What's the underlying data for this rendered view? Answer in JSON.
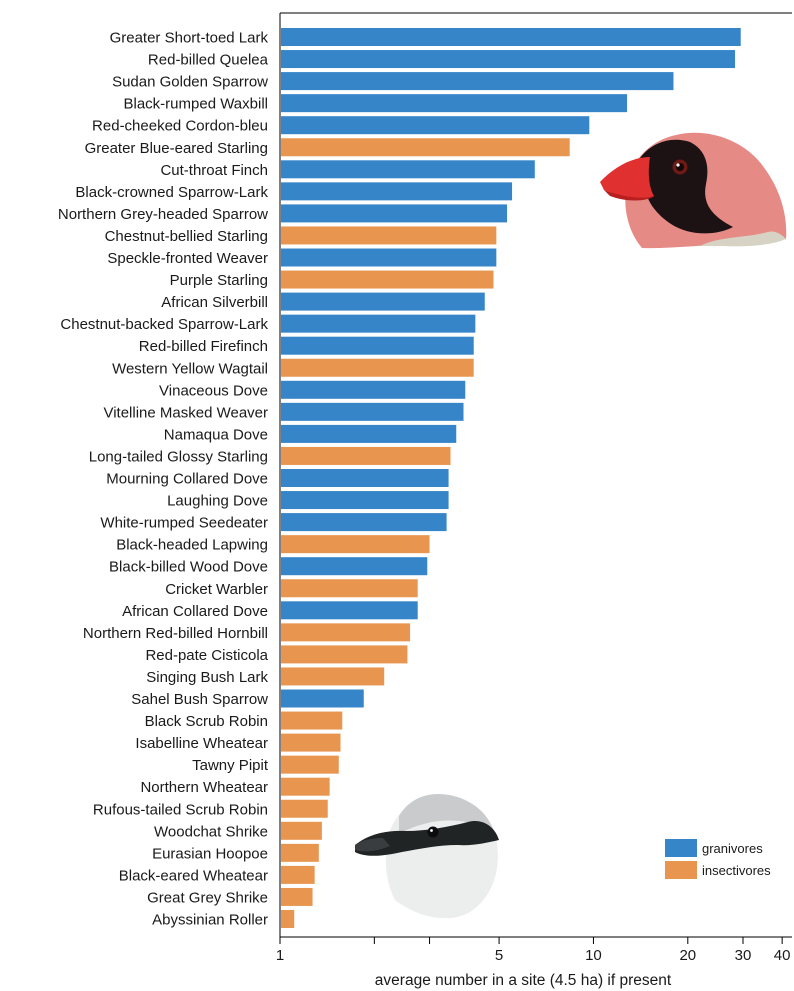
{
  "chart_data": {
    "type": "bar",
    "orientation": "horizontal",
    "x_scale": "log",
    "xlim": [
      1,
      43
    ],
    "xlabel": "average number in a site (4.5 ha) if present",
    "xticks": [
      1,
      2,
      3,
      5,
      10,
      20,
      30,
      40
    ],
    "xtick_labels": [
      "1",
      "",
      "",
      "5",
      "10",
      "20",
      "30",
      "40"
    ],
    "grid": false,
    "legend_position": "bottom-right",
    "series": [
      {
        "name": "granivores",
        "color": "#3585c8"
      },
      {
        "name": "insectivores",
        "color": "#e8964f"
      }
    ],
    "categories": [
      "Greater Short-toed Lark",
      "Red-billed Quelea",
      "Sudan Golden Sparrow",
      "Black-rumped Waxbill",
      "Red-cheeked Cordon-bleu",
      "Greater Blue-eared Starling",
      "Cut-throat Finch",
      "Black-crowned Sparrow-Lark",
      "Northern Grey-headed Sparrow",
      "Chestnut-bellied Starling",
      "Speckle-fronted Weaver",
      "Purple Starling",
      "African Silverbill",
      "Chestnut-backed Sparrow-Lark",
      "Red-billed Firefinch",
      "Western Yellow Wagtail",
      "Vinaceous Dove",
      "Vitelline Masked Weaver",
      "Namaqua Dove",
      "Long-tailed Glossy Starling",
      "Mourning Collared Dove",
      "Laughing Dove",
      "White-rumped Seedeater",
      "Black-headed Lapwing",
      "Black-billed Wood Dove",
      "Cricket Warbler",
      "African Collared Dove",
      "Northern Red-billed Hornbill",
      "Red-pate Cisticola",
      "Singing Bush Lark",
      "Sahel Bush Sparrow",
      "Black Scrub Robin",
      "Isabelline Wheatear",
      "Tawny Pipit",
      "Northern Wheatear",
      "Rufous-tailed Scrub Robin",
      "Woodchat Shrike",
      "Eurasian Hoopoe",
      "Black-eared Wheatear",
      "Great Grey Shrike",
      "Abyssinian Roller"
    ],
    "values": [
      29.5,
      28.3,
      18.0,
      12.8,
      9.7,
      8.4,
      6.5,
      5.5,
      5.3,
      4.9,
      4.9,
      4.8,
      4.5,
      4.2,
      4.15,
      4.15,
      3.9,
      3.85,
      3.65,
      3.5,
      3.45,
      3.45,
      3.4,
      3.0,
      2.95,
      2.75,
      2.75,
      2.6,
      2.55,
      2.15,
      1.85,
      1.58,
      1.56,
      1.54,
      1.44,
      1.42,
      1.36,
      1.33,
      1.29,
      1.27,
      1.11
    ],
    "groups": [
      "granivores",
      "granivores",
      "granivores",
      "granivores",
      "granivores",
      "insectivores",
      "granivores",
      "granivores",
      "granivores",
      "insectivores",
      "granivores",
      "insectivores",
      "granivores",
      "granivores",
      "granivores",
      "insectivores",
      "granivores",
      "granivores",
      "granivores",
      "insectivores",
      "granivores",
      "granivores",
      "granivores",
      "insectivores",
      "granivores",
      "insectivores",
      "granivores",
      "insectivores",
      "insectivores",
      "insectivores",
      "granivores",
      "insectivores",
      "insectivores",
      "insectivores",
      "insectivores",
      "insectivores",
      "insectivores",
      "insectivores",
      "insectivores",
      "insectivores",
      "insectivores"
    ]
  },
  "illustrations": [
    {
      "icon": "quelea-head-illustration"
    },
    {
      "icon": "shrike-head-illustration"
    }
  ]
}
